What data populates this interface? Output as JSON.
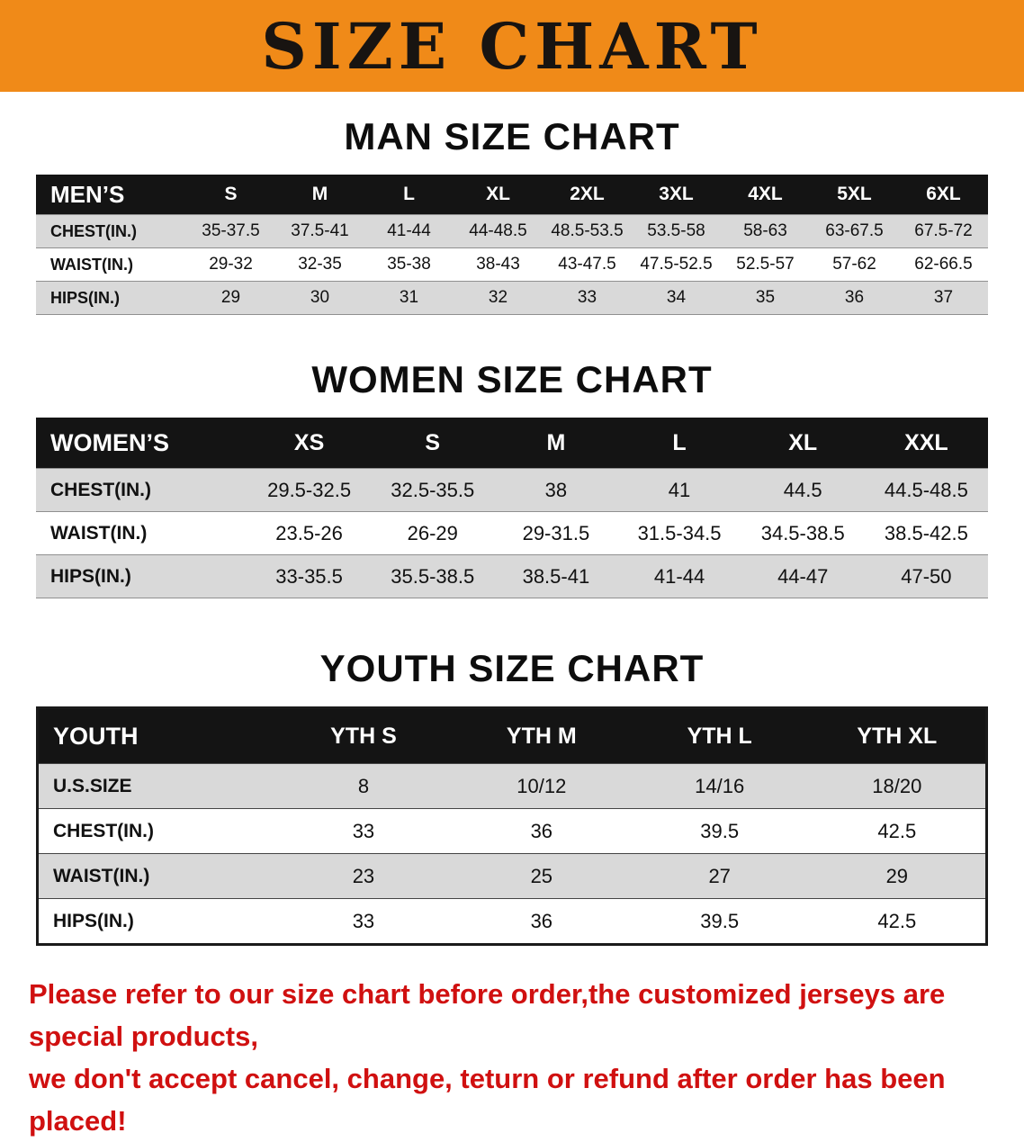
{
  "banner": {
    "title": "SIZE CHART",
    "bg_color": "#f08a18",
    "text_color": "#181411"
  },
  "colors": {
    "table_header_bg": "#141414",
    "row_shade": "#d9d9d9",
    "note_red": "#d01010"
  },
  "sections": [
    {
      "id": "men",
      "heading": "MAN SIZE CHART",
      "table": {
        "header": [
          "MEN’S",
          "S",
          "M",
          "L",
          "XL",
          "2XL",
          "3XL",
          "4XL",
          "5XL",
          "6XL"
        ],
        "rows": [
          [
            "CHEST(IN.)",
            "35-37.5",
            "37.5-41",
            "41-44",
            "44-48.5",
            "48.5-53.5",
            "53.5-58",
            "58-63",
            "63-67.5",
            "67.5-72"
          ],
          [
            "WAIST(IN.)",
            "29-32",
            "32-35",
            "35-38",
            "38-43",
            "43-47.5",
            "47.5-52.5",
            "52.5-57",
            "57-62",
            "62-66.5"
          ],
          [
            "HIPS(IN.)",
            "29",
            "30",
            "31",
            "32",
            "33",
            "34",
            "35",
            "36",
            "37"
          ]
        ]
      }
    },
    {
      "id": "women",
      "heading": "WOMEN SIZE CHART",
      "table": {
        "header": [
          "WOMEN’S",
          "XS",
          "S",
          "M",
          "L",
          "XL",
          "XXL"
        ],
        "rows": [
          [
            "CHEST(IN.)",
            "29.5-32.5",
            "32.5-35.5",
            "38",
            "41",
            "44.5",
            "44.5-48.5"
          ],
          [
            "WAIST(IN.)",
            "23.5-26",
            "26-29",
            "29-31.5",
            "31.5-34.5",
            "34.5-38.5",
            "38.5-42.5"
          ],
          [
            "HIPS(IN.)",
            "33-35.5",
            "35.5-38.5",
            "38.5-41",
            "41-44",
            "44-47",
            "47-50"
          ]
        ]
      }
    },
    {
      "id": "youth",
      "heading": "YOUTH SIZE CHART",
      "table": {
        "header": [
          "YOUTH",
          "YTH S",
          "YTH M",
          "YTH L",
          "YTH XL"
        ],
        "rows": [
          [
            "U.S.SIZE",
            "8",
            "10/12",
            "14/16",
            "18/20"
          ],
          [
            "CHEST(IN.)",
            "33",
            "36",
            "39.5",
            "42.5"
          ],
          [
            "WAIST(IN.)",
            "23",
            "25",
            "27",
            "29"
          ],
          [
            "HIPS(IN.)",
            "33",
            "36",
            "39.5",
            "42.5"
          ]
        ]
      }
    }
  ],
  "footer_note": {
    "lines": [
      "Please refer to our size chart before order,the customized jerseys are special products,",
      "we don't accept cancel, change, teturn or refund after order has been placed!"
    ]
  }
}
